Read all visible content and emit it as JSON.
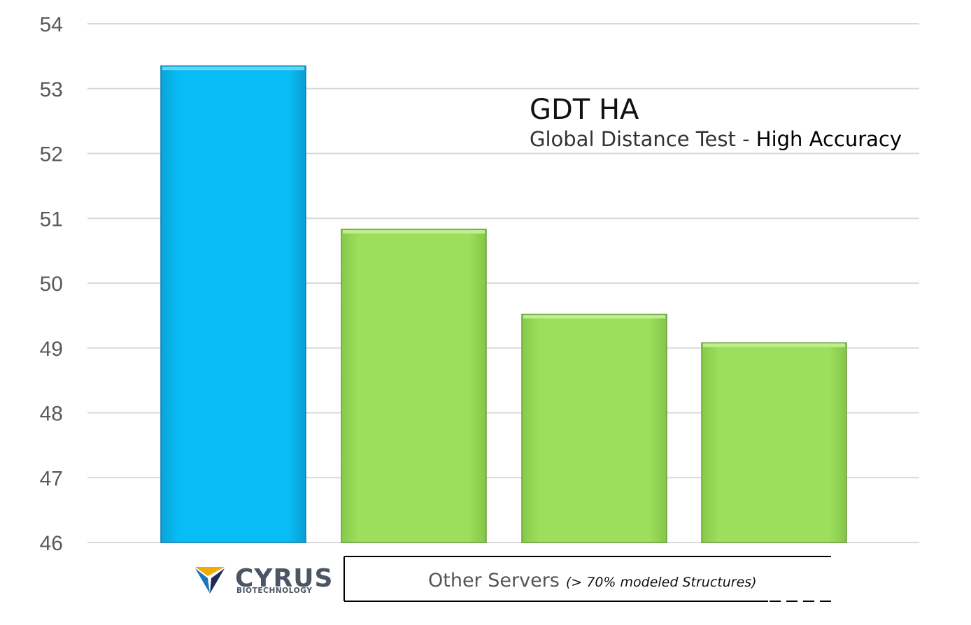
{
  "chart_data": {
    "type": "bar",
    "title": "GDT HA",
    "subtitle_prefix": "Global Distance Test - ",
    "subtitle_emphasis": "High Accuracy",
    "categories": [
      "",
      "",
      "",
      ""
    ],
    "values": [
      53.35,
      50.83,
      49.52,
      49.08
    ],
    "bar_colors": [
      "#00b9f2",
      "#9bde5b",
      "#9bde5b",
      "#9bde5b"
    ],
    "ylim": [
      46,
      54
    ],
    "yticks": [
      "46",
      "47",
      "48",
      "49",
      "50",
      "51",
      "52",
      "53",
      "54"
    ],
    "grid": true,
    "xlabel": "",
    "ylabel": ""
  },
  "logo": {
    "word": "CYRUS",
    "subword": "BIOTECHNOLOGY",
    "colors": {
      "gold": "#f2a900",
      "blue": "#1b75bc",
      "navy": "#1c2a5a"
    }
  },
  "group_bracket": {
    "label": "Other Servers",
    "note": "(> 70% modeled Structures)"
  }
}
